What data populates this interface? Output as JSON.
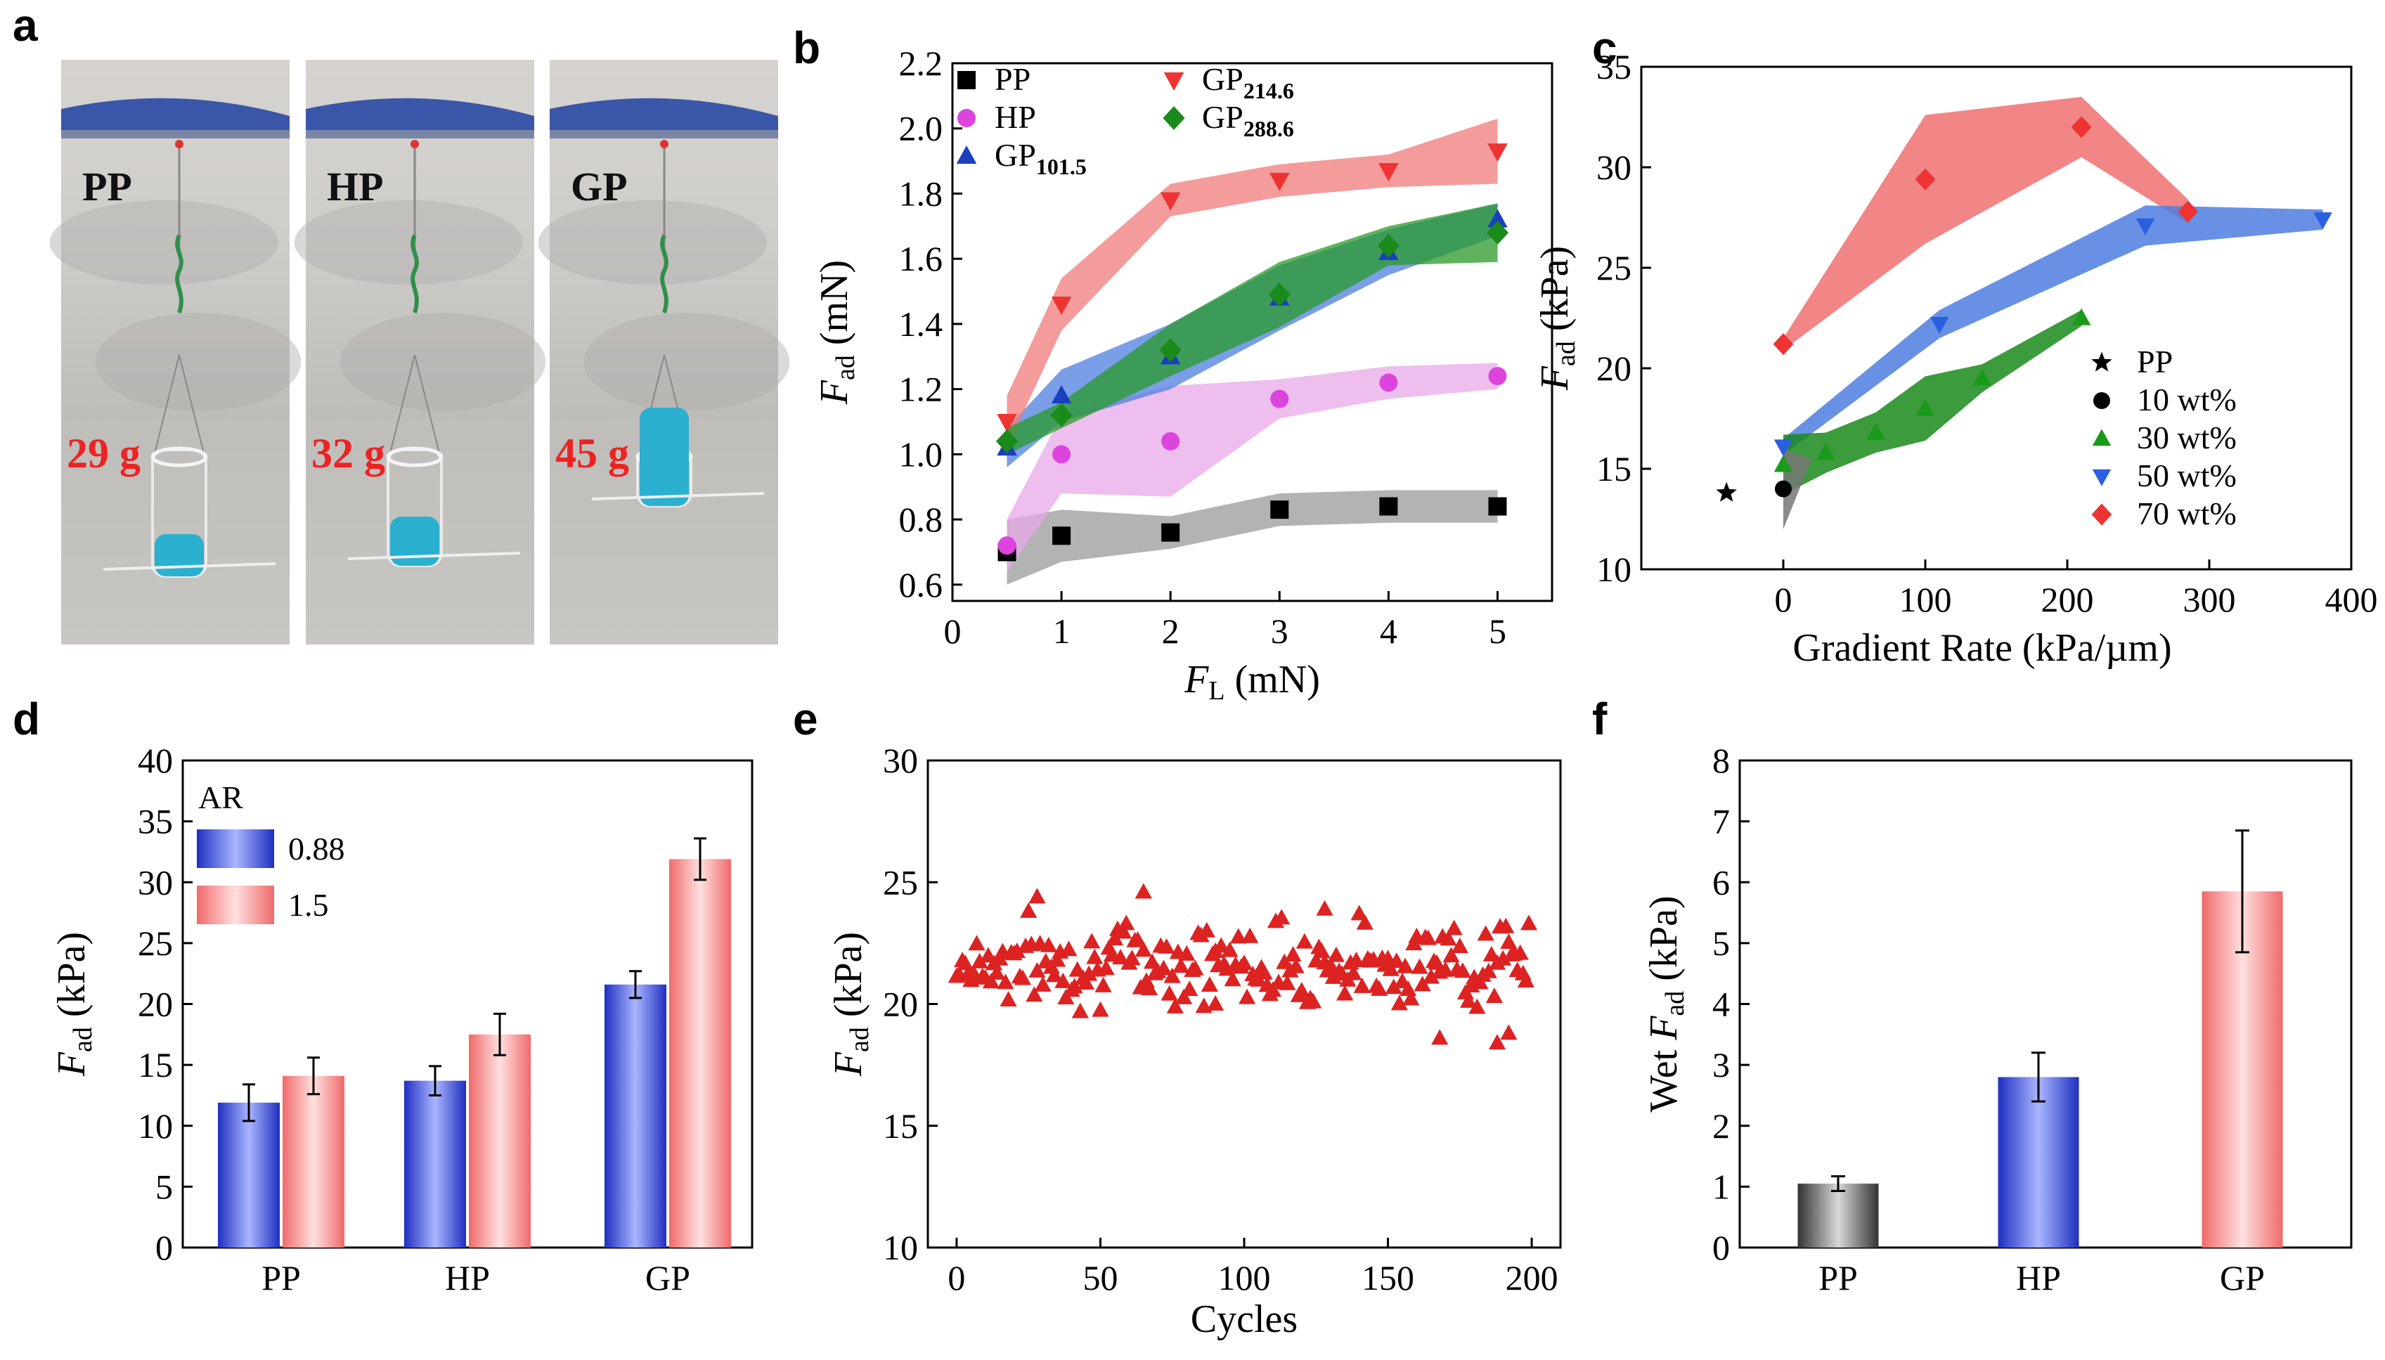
{
  "figure": {
    "panel_a": {
      "label": "a",
      "samples": [
        {
          "name": "PP",
          "mass": "29 g"
        },
        {
          "name": "HP",
          "mass": "32 g"
        },
        {
          "name": "GP",
          "mass": "45 g"
        }
      ]
    },
    "panel_labels": {
      "b": "b",
      "c": "c",
      "d": "d",
      "e": "e",
      "f": "f"
    }
  },
  "chart_data": [
    {
      "id": "b",
      "type": "scatter",
      "xlabel_main": "F",
      "xlabel_sub": "L",
      "xlabel_unit": " (mN)",
      "ylabel_main": "F",
      "ylabel_sub": "ad",
      "ylabel_unit": " (mN)",
      "xlim": [
        0,
        5.5
      ],
      "ylim": [
        0.55,
        2.2
      ],
      "xticks": [
        "0",
        "1",
        "2",
        "3",
        "4",
        "5"
      ],
      "yticks": [
        "0.6",
        "0.8",
        "1.0",
        "1.2",
        "1.4",
        "1.6",
        "1.8",
        "2.0",
        "2.2"
      ],
      "x": [
        0.5,
        1,
        2,
        3,
        4,
        5
      ],
      "series": [
        {
          "name": "PP",
          "sub": "",
          "color": "#000000",
          "band": "#9a9a9a",
          "marker": "square",
          "values": [
            0.7,
            0.75,
            0.76,
            0.83,
            0.84,
            0.84
          ]
        },
        {
          "name": "HP",
          "sub": "",
          "color": "#dd44dd",
          "band": "#e8a8e8",
          "marker": "circle",
          "values": [
            0.72,
            1.0,
            1.04,
            1.17,
            1.22,
            1.24
          ]
        },
        {
          "name": "GP",
          "sub": "101.5",
          "color": "#1a3fbf",
          "band": "#4d7ee0",
          "marker": "triangle-up",
          "values": [
            1.02,
            1.18,
            1.3,
            1.48,
            1.62,
            1.72
          ]
        },
        {
          "name": "GP",
          "sub": "214.6",
          "color": "#ee3333",
          "band": "#f07a7a",
          "marker": "triangle-down",
          "values": [
            1.1,
            1.46,
            1.78,
            1.84,
            1.87,
            1.93
          ]
        },
        {
          "name": "GP",
          "sub": "288.6",
          "color": "#1a8a1a",
          "band": "#2a9a2a",
          "marker": "diamond",
          "values": [
            1.04,
            1.12,
            1.32,
            1.49,
            1.64,
            1.68
          ]
        }
      ]
    },
    {
      "id": "c",
      "type": "scatter",
      "xlabel": "Gradient Rate (kPa/µm)",
      "ylabel_main": "F",
      "ylabel_sub": "ad",
      "ylabel_unit": " (kPa)",
      "xlim": [
        -100,
        400
      ],
      "ylim": [
        10,
        35
      ],
      "xticks": [
        "0",
        "100",
        "200",
        "300",
        "400"
      ],
      "yticks": [
        "10",
        "15",
        "20",
        "25",
        "30",
        "35"
      ],
      "series": [
        {
          "name": "PP",
          "color": "#000000",
          "marker": "star",
          "x": [
            -40
          ],
          "y": [
            13.8
          ]
        },
        {
          "name": "10 wt%",
          "color": "#000000",
          "band": "#777777",
          "marker": "circle",
          "x": [
            0
          ],
          "y": [
            14.0
          ]
        },
        {
          "name": "30 wt%",
          "color": "#1a9a1a",
          "band": "#1a8a1a",
          "marker": "triangle-up",
          "x": [
            0,
            30,
            65,
            100,
            140,
            210
          ],
          "y": [
            15.2,
            15.8,
            16.8,
            18.0,
            19.5,
            22.5
          ]
        },
        {
          "name": "50 wt%",
          "color": "#2a5fe0",
          "band": "#4d7ee0",
          "marker": "triangle-down",
          "x": [
            0,
            110,
            255,
            380
          ],
          "y": [
            16.1,
            22.2,
            27.1,
            27.4
          ]
        },
        {
          "name": "70 wt%",
          "color": "#ee3333",
          "band": "#f07070",
          "marker": "diamond",
          "x": [
            0,
            100,
            210,
            285
          ],
          "y": [
            21.2,
            29.4,
            32.0,
            27.8
          ]
        }
      ]
    },
    {
      "id": "d",
      "type": "bar",
      "ylabel_main": "F",
      "ylabel_sub": "ad",
      "ylabel_unit": " (kPa)",
      "categories": [
        "PP",
        "HP",
        "GP"
      ],
      "ylim": [
        0,
        40
      ],
      "yticks": [
        "0",
        "5",
        "10",
        "15",
        "20",
        "25",
        "30",
        "35",
        "40"
      ],
      "legend_title": "AR",
      "series": [
        {
          "name": "0.88",
          "color": "#3a4fe0",
          "values": [
            11.9,
            13.7,
            21.6
          ],
          "errors": [
            1.5,
            1.2,
            1.1
          ]
        },
        {
          "name": "1.5",
          "color": "#f07a7a",
          "values": [
            14.1,
            17.5,
            31.9
          ],
          "errors": [
            1.5,
            1.7,
            1.7
          ]
        }
      ]
    },
    {
      "id": "e",
      "type": "scatter",
      "xlabel": "Cycles",
      "ylabel_main": "F",
      "ylabel_sub": "ad",
      "ylabel_unit": " (kPa)",
      "xlim": [
        -10,
        210
      ],
      "ylim": [
        10,
        30
      ],
      "xticks": [
        "0",
        "50",
        "100",
        "150",
        "200"
      ],
      "yticks": [
        "10",
        "15",
        "20",
        "25",
        "30"
      ],
      "marker": "triangle-up",
      "color": "#dd2222",
      "mean": 21.7,
      "spread": 1.2,
      "n_points": 200,
      "outliers": [
        {
          "x": 28,
          "y": 24.4
        },
        {
          "x": 65,
          "y": 24.6
        },
        {
          "x": 128,
          "y": 23.9
        },
        {
          "x": 168,
          "y": 18.6
        },
        {
          "x": 188,
          "y": 18.4
        },
        {
          "x": 192,
          "y": 18.8
        },
        {
          "x": 90,
          "y": 20.0
        }
      ]
    },
    {
      "id": "f",
      "type": "bar",
      "ylabel_pre": "Wet ",
      "ylabel_main": "F",
      "ylabel_sub": "ad",
      "ylabel_unit": " (kPa)",
      "categories": [
        "PP",
        "HP",
        "GP"
      ],
      "ylim": [
        0,
        8
      ],
      "yticks": [
        "0",
        "1",
        "2",
        "3",
        "4",
        "5",
        "6",
        "7",
        "8"
      ],
      "values": [
        1.05,
        2.8,
        5.85
      ],
      "errors": [
        0.12,
        0.4,
        1.0
      ],
      "colors": [
        "#555555",
        "#3a4fe0",
        "#f07a7a"
      ]
    }
  ]
}
